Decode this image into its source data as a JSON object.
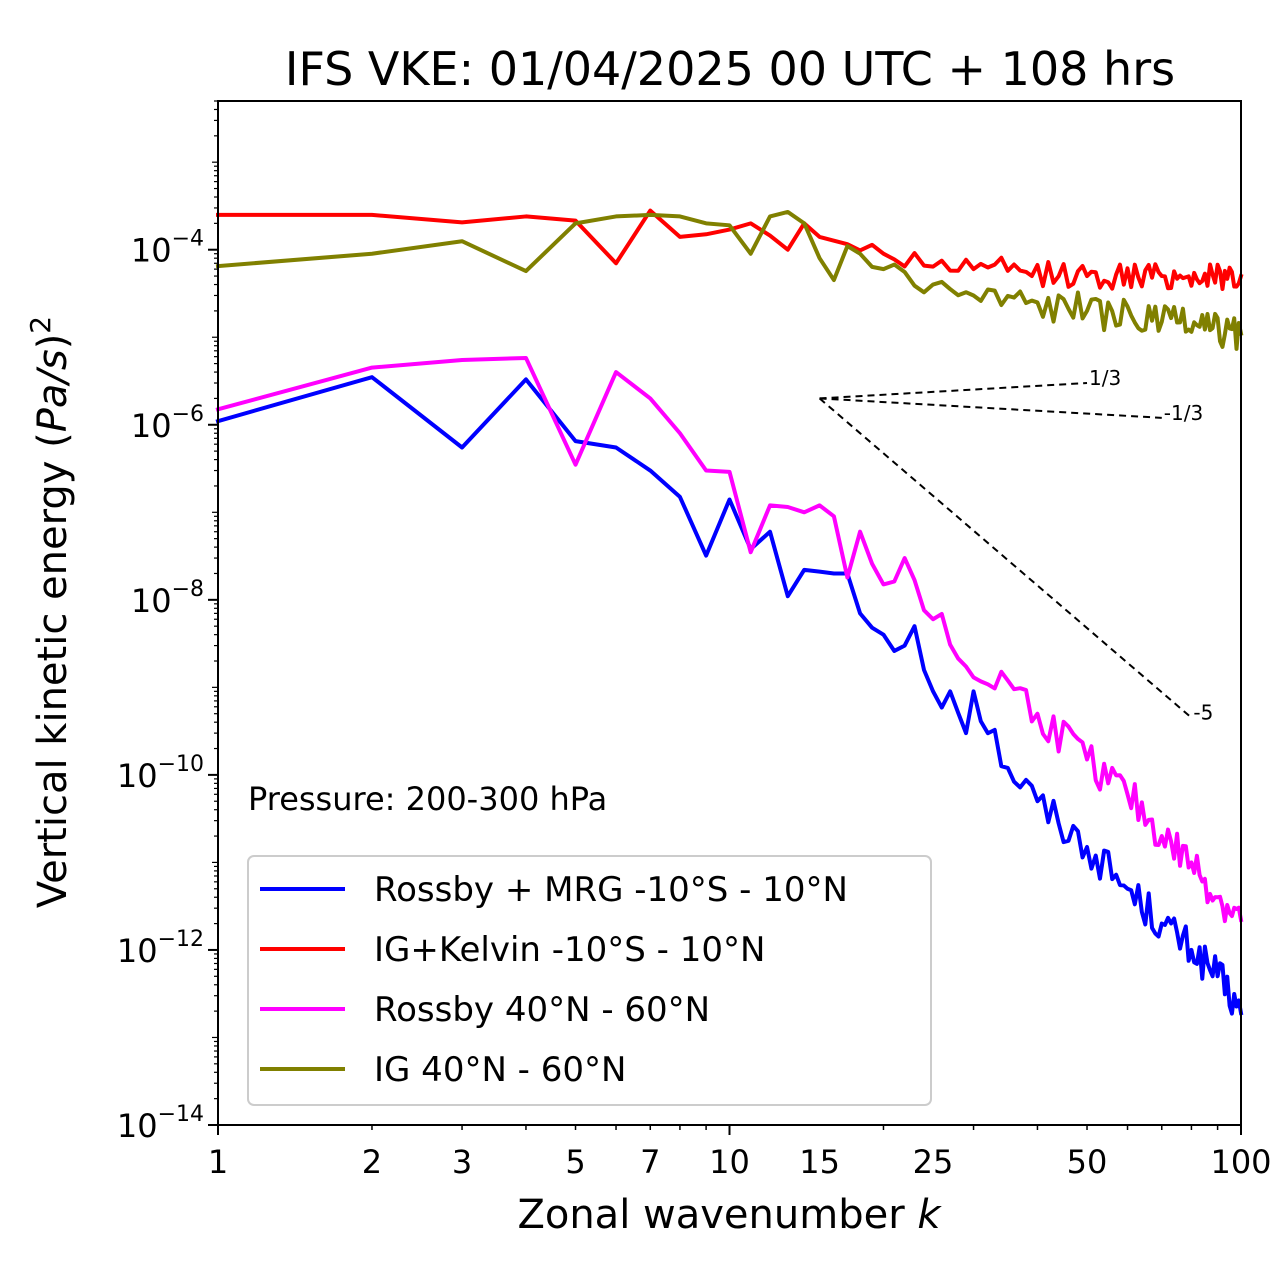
{
  "chart_data": {
    "type": "line",
    "title": "IFS VKE: 01/04/2025 00 UTC + 108 hrs",
    "xlabel": "Zonal wavenumber k",
    "ylabel": "Vertical kinetic energy (Pa/s)^2",
    "xscale": "log",
    "yscale": "log",
    "xlim": [
      1,
      100
    ],
    "ylim": [
      1e-14,
      0.005
    ],
    "xticks": [
      1,
      2,
      3,
      5,
      7,
      10,
      15,
      25,
      50,
      100
    ],
    "xticklabels": [
      "1",
      "2",
      "3",
      "5",
      "7",
      "10",
      "15",
      "25",
      "50",
      "100"
    ],
    "yticks": [
      {
        "value": 0.0001,
        "base": "10",
        "exp": "−4"
      },
      {
        "value": 1e-06,
        "base": "10",
        "exp": "−6"
      },
      {
        "value": 1e-08,
        "base": "10",
        "exp": "−8"
      },
      {
        "value": 1e-10,
        "base": "10",
        "exp": "−10"
      },
      {
        "value": 1e-12,
        "base": "10",
        "exp": "−12"
      },
      {
        "value": 1e-14,
        "base": "10",
        "exp": "−14"
      }
    ],
    "annotation": "Pressure: 200-300 hPa",
    "legend_position": "lower-left",
    "grid": false,
    "series": [
      {
        "name": "Rossby + MRG -10°S - 10°N",
        "color": "#0000ff",
        "anchors": [
          [
            1,
            1.1e-06
          ],
          [
            2,
            3.5e-06
          ],
          [
            3,
            5.5e-07
          ],
          [
            4,
            3.3e-06
          ],
          [
            5,
            6.5e-07
          ],
          [
            6,
            5.5e-07
          ],
          [
            7,
            3e-07
          ],
          [
            8,
            1.5e-07
          ],
          [
            9,
            3.2e-08
          ],
          [
            10,
            1.4e-07
          ],
          [
            11,
            3.8e-08
          ],
          [
            12,
            6e-08
          ],
          [
            13,
            1.1e-08
          ],
          [
            14,
            2.2e-08
          ],
          [
            15,
            2.1e-08
          ],
          [
            16,
            2e-08
          ],
          [
            17,
            2e-08
          ],
          [
            18,
            7e-09
          ],
          [
            20,
            4e-09
          ],
          [
            22,
            3e-09
          ],
          [
            23,
            5e-09
          ],
          [
            25,
            9e-10
          ],
          [
            27,
            9e-10
          ],
          [
            29,
            3e-10
          ],
          [
            30,
            9e-10
          ],
          [
            35,
            1.2e-10
          ],
          [
            40,
            5e-11
          ],
          [
            50,
            1.5e-11
          ],
          [
            60,
            5e-12
          ],
          [
            70,
            2e-12
          ],
          [
            80,
            1e-12
          ],
          [
            90,
            5e-13
          ],
          [
            100,
            1.9e-13
          ]
        ],
        "noise": 0.22
      },
      {
        "name": "IG+Kelvin -10°S - 10°N",
        "color": "#ff0000",
        "anchors": [
          [
            1,
            0.00025
          ],
          [
            2,
            0.00025
          ],
          [
            3,
            0.000205
          ],
          [
            4,
            0.00024
          ],
          [
            5,
            0.000215
          ],
          [
            6,
            7e-05
          ],
          [
            7,
            0.00028
          ],
          [
            8,
            0.00014
          ],
          [
            9,
            0.00015
          ],
          [
            10,
            0.00017
          ],
          [
            11,
            0.0002
          ],
          [
            12,
            0.000145
          ],
          [
            13,
            0.0001
          ],
          [
            14,
            0.0002
          ],
          [
            15,
            0.00014
          ],
          [
            20,
            9e-05
          ],
          [
            30,
            6e-05
          ],
          [
            50,
            5e-05
          ],
          [
            70,
            5e-05
          ],
          [
            100,
            5e-05
          ]
        ],
        "noise": 0.15
      },
      {
        "name": "Rossby 40°N - 60°N",
        "color": "#ff00ff",
        "anchors": [
          [
            1,
            1.5e-06
          ],
          [
            2,
            4.5e-06
          ],
          [
            3,
            5.5e-06
          ],
          [
            4,
            5.8e-06
          ],
          [
            5,
            3.5e-07
          ],
          [
            6,
            4e-06
          ],
          [
            7,
            2e-06
          ],
          [
            8,
            8e-07
          ],
          [
            9,
            3e-07
          ],
          [
            10,
            2.9e-07
          ],
          [
            11,
            3.5e-08
          ],
          [
            12,
            1.2e-07
          ],
          [
            13,
            1.15e-07
          ],
          [
            14,
            1e-07
          ],
          [
            15,
            1.2e-07
          ],
          [
            16,
            9e-08
          ],
          [
            17,
            1.8e-08
          ],
          [
            18,
            6e-08
          ],
          [
            20,
            1.5e-08
          ],
          [
            22,
            3e-08
          ],
          [
            25,
            6e-09
          ],
          [
            30,
            1.3e-09
          ],
          [
            35,
            1.2e-09
          ],
          [
            40,
            5e-10
          ],
          [
            50,
            1.5e-10
          ],
          [
            60,
            6e-11
          ],
          [
            70,
            2e-11
          ],
          [
            80,
            1e-11
          ],
          [
            90,
            4e-12
          ],
          [
            100,
            2.2e-12
          ]
        ],
        "noise": 0.22
      },
      {
        "name": "IG 40°N - 60°N",
        "color": "#808000",
        "anchors": [
          [
            1,
            6.5e-05
          ],
          [
            2,
            9e-05
          ],
          [
            3,
            0.000125
          ],
          [
            4,
            5.7e-05
          ],
          [
            5,
            0.0002
          ],
          [
            6,
            0.00024
          ],
          [
            7,
            0.00025
          ],
          [
            8,
            0.00024
          ],
          [
            9,
            0.0002
          ],
          [
            10,
            0.00019
          ],
          [
            11,
            9e-05
          ],
          [
            12,
            0.00024
          ],
          [
            13,
            0.00027
          ],
          [
            14,
            0.0002
          ],
          [
            15,
            8e-05
          ],
          [
            16,
            4.5e-05
          ],
          [
            17,
            0.00011
          ],
          [
            18,
            9e-05
          ],
          [
            20,
            6e-05
          ],
          [
            25,
            4e-05
          ],
          [
            30,
            3e-05
          ],
          [
            40,
            2.5e-05
          ],
          [
            50,
            2e-05
          ],
          [
            70,
            1.5e-05
          ],
          [
            100,
            1.1e-05
          ]
        ],
        "noise": 0.2
      }
    ],
    "reference_lines": [
      {
        "label": "1/3",
        "from": [
          15,
          2e-06
        ],
        "to": [
          50,
          3e-06
        ]
      },
      {
        "label": "-1/3",
        "from": [
          15,
          2e-06
        ],
        "to": [
          70,
          1.2e-06
        ]
      },
      {
        "label": "-5",
        "from": [
          15,
          2e-06
        ],
        "to": [
          80,
          4.5e-10
        ]
      }
    ]
  }
}
